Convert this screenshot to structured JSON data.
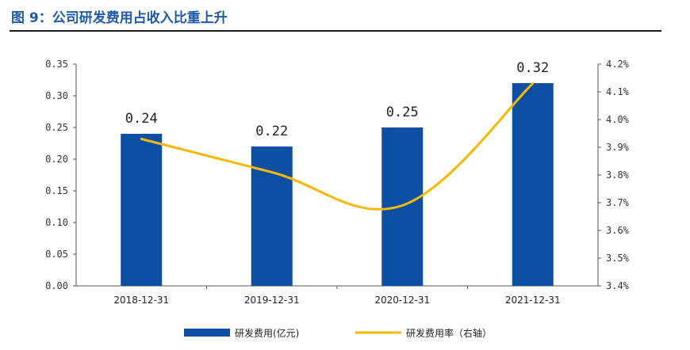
{
  "figure": {
    "title": "图 9：公司研发费用占收入比重上升"
  },
  "chart_data": {
    "type": "bar",
    "categories": [
      "2018-12-31",
      "2019-12-31",
      "2020-12-31",
      "2021-12-31"
    ],
    "series": [
      {
        "name": "研发费用(亿元)",
        "type": "bar",
        "axis": "left",
        "values": [
          0.24,
          0.22,
          0.25,
          0.32
        ],
        "data_labels": [
          "0.24",
          "0.22",
          "0.25",
          "0.32"
        ],
        "color": "#0b4ea2"
      },
      {
        "name": "研发费用率（右轴）",
        "type": "line",
        "axis": "right",
        "values": [
          3.93,
          3.81,
          3.69,
          4.13
        ],
        "color": "#f5b800"
      }
    ],
    "ylim_left": [
      0,
      0.35
    ],
    "yticks_left": [
      "0.00",
      "0.05",
      "0.10",
      "0.15",
      "0.20",
      "0.25",
      "0.30",
      "0.35"
    ],
    "ylim_right": [
      3.4,
      4.2
    ],
    "yticks_right": [
      "3.4%",
      "3.5%",
      "3.6%",
      "3.7%",
      "3.8%",
      "3.9%",
      "4.0%",
      "4.1%",
      "4.2%"
    ],
    "grid": false,
    "legend_position": "bottom"
  }
}
